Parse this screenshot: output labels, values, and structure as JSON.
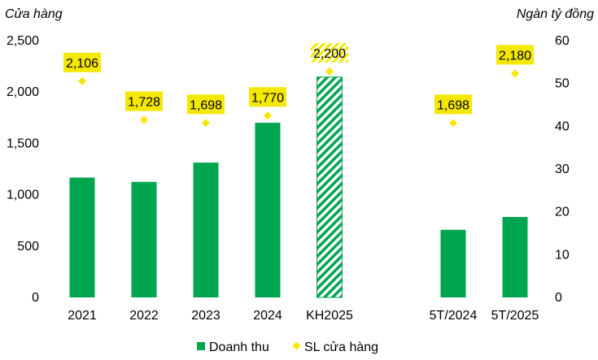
{
  "chart_data": {
    "type": "bar",
    "categories": [
      "2021",
      "2022",
      "2023",
      "2024",
      "KH2025",
      "5T/2024",
      "5T/2025"
    ],
    "category_slots": [
      0,
      1,
      2,
      3,
      4,
      6,
      7
    ],
    "y_left_label": "Cửa hàng",
    "y_right_label": "Ngàn tỷ đồng",
    "y_left_range": [
      0,
      2500
    ],
    "y_left_ticks": [
      "0",
      "500",
      "1,000",
      "1,500",
      "2,000",
      "2,500"
    ],
    "y_left_tick_values": [
      0,
      500,
      1000,
      1500,
      2000,
      2500
    ],
    "y_right_range": [
      0,
      60
    ],
    "y_right_ticks": [
      "0",
      "10",
      "20",
      "30",
      "40",
      "50",
      "60"
    ],
    "y_right_tick_values": [
      0,
      10,
      20,
      30,
      40,
      50,
      60
    ],
    "series": [
      {
        "name": "Doanh thu",
        "kind": "bar",
        "axis": "right",
        "values": [
          28.0,
          27.0,
          31.5,
          40.8,
          51.5,
          15.8,
          18.8
        ],
        "hatched": [
          false,
          false,
          false,
          false,
          true,
          false,
          false
        ],
        "color": "#00A550"
      },
      {
        "name": "SL cửa hàng",
        "kind": "scatter",
        "axis": "left",
        "values": [
          2106,
          1728,
          1698,
          1770,
          2200,
          1698,
          2180
        ],
        "labels": [
          "2,106",
          "1,728",
          "1,698",
          "1,770",
          "2,200",
          "1,698",
          "2,180"
        ],
        "label_hatched": [
          false,
          false,
          false,
          false,
          true,
          false,
          false
        ],
        "color": "#F5E800"
      }
    ],
    "grid": false,
    "legend_position": "bottom"
  }
}
